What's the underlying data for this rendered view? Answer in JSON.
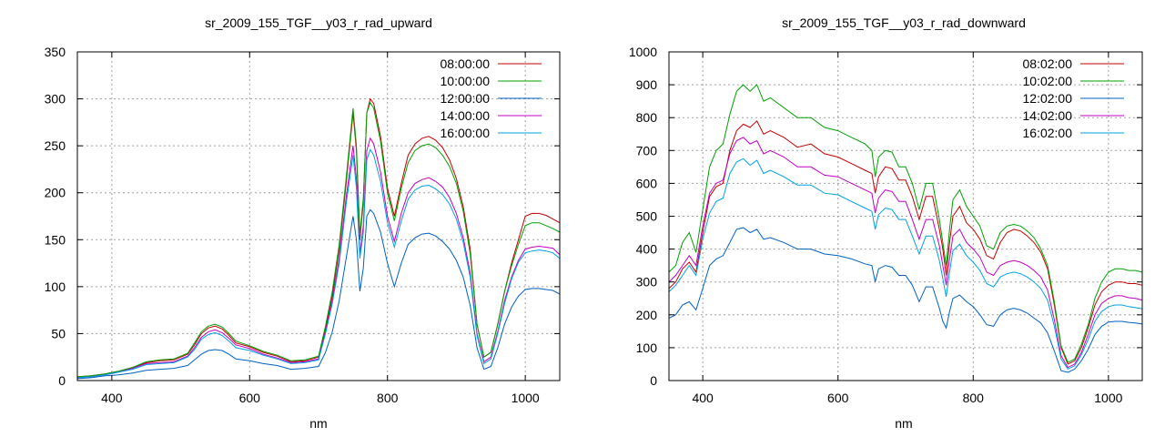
{
  "chart_data": [
    {
      "type": "line",
      "title": "sr_2009_155_TGF__y03_r_rad_upward",
      "xlabel": "nm",
      "ylabel": "",
      "xlim": [
        350,
        1050
      ],
      "ylim": [
        0,
        350
      ],
      "xticks": [
        400,
        600,
        800,
        1000
      ],
      "yticks": [
        0,
        50,
        100,
        150,
        200,
        250,
        300,
        350
      ],
      "grid": true,
      "legend_position": "top-right",
      "x": [
        350,
        370,
        390,
        410,
        430,
        450,
        470,
        490,
        510,
        520,
        530,
        540,
        550,
        560,
        570,
        580,
        600,
        620,
        640,
        660,
        680,
        700,
        710,
        720,
        730,
        740,
        750,
        755,
        760,
        765,
        770,
        775,
        780,
        790,
        800,
        810,
        820,
        830,
        840,
        850,
        860,
        870,
        880,
        890,
        900,
        910,
        920,
        930,
        940,
        950,
        960,
        970,
        980,
        990,
        1000,
        1010,
        1020,
        1030,
        1040,
        1050
      ],
      "series": [
        {
          "name": "08:00:00",
          "color": "#c00000",
          "values": [
            4,
            5,
            7,
            10,
            14,
            19,
            21,
            22,
            28,
            38,
            50,
            56,
            58,
            55,
            48,
            40,
            36,
            30,
            26,
            20,
            21,
            25,
            55,
            90,
            140,
            210,
            285,
            245,
            150,
            190,
            285,
            300,
            295,
            260,
            205,
            175,
            210,
            240,
            252,
            258,
            260,
            256,
            248,
            235,
            215,
            185,
            140,
            60,
            25,
            30,
            60,
            95,
            125,
            150,
            175,
            178,
            178,
            176,
            172,
            168
          ]
        },
        {
          "name": "10:00:00",
          "color": "#00a000",
          "values": [
            4,
            5,
            7,
            10,
            14,
            20,
            22,
            23,
            29,
            40,
            52,
            58,
            60,
            57,
            50,
            42,
            37,
            31,
            27,
            21,
            22,
            26,
            58,
            95,
            145,
            215,
            290,
            250,
            155,
            195,
            285,
            296,
            290,
            255,
            200,
            170,
            205,
            232,
            245,
            250,
            252,
            248,
            240,
            228,
            210,
            180,
            135,
            60,
            25,
            30,
            60,
            95,
            122,
            145,
            165,
            168,
            168,
            165,
            162,
            158
          ]
        },
        {
          "name": "12:00:00",
          "color": "#0060c0",
          "values": [
            2,
            3,
            5,
            6,
            8,
            11,
            12,
            13,
            16,
            22,
            28,
            32,
            33,
            32,
            28,
            23,
            21,
            18,
            16,
            12,
            13,
            15,
            30,
            52,
            85,
            130,
            175,
            150,
            95,
            120,
            175,
            182,
            178,
            158,
            125,
            100,
            125,
            145,
            152,
            156,
            157,
            154,
            148,
            140,
            128,
            110,
            80,
            35,
            12,
            15,
            35,
            60,
            78,
            90,
            97,
            98,
            98,
            97,
            96,
            92
          ]
        },
        {
          "name": "14:00:00",
          "color": "#c000c0",
          "values": [
            3,
            4,
            6,
            9,
            13,
            18,
            19,
            20,
            26,
            35,
            46,
            52,
            54,
            51,
            45,
            38,
            34,
            28,
            24,
            19,
            20,
            23,
            52,
            85,
            130,
            195,
            250,
            215,
            135,
            165,
            245,
            258,
            252,
            222,
            175,
            148,
            178,
            200,
            210,
            214,
            216,
            212,
            206,
            195,
            178,
            152,
            115,
            50,
            20,
            25,
            52,
            85,
            110,
            128,
            140,
            142,
            143,
            142,
            141,
            134
          ]
        },
        {
          "name": "16:00:00",
          "color": "#00a0e0",
          "values": [
            3,
            4,
            6,
            9,
            12,
            17,
            18,
            19,
            25,
            33,
            44,
            49,
            51,
            48,
            42,
            35,
            32,
            27,
            23,
            18,
            19,
            22,
            50,
            82,
            125,
            188,
            240,
            205,
            130,
            158,
            235,
            246,
            240,
            212,
            168,
            142,
            170,
            193,
            203,
            207,
            208,
            204,
            198,
            188,
            172,
            147,
            110,
            48,
            18,
            23,
            50,
            82,
            108,
            126,
            136,
            138,
            139,
            138,
            136,
            130
          ]
        }
      ]
    },
    {
      "type": "line",
      "title": "sr_2009_155_TGF__y03_r_rad_downward",
      "xlabel": "nm",
      "ylabel": "",
      "xlim": [
        350,
        1050
      ],
      "ylim": [
        0,
        1000
      ],
      "xticks": [
        400,
        600,
        800,
        1000
      ],
      "yticks": [
        0,
        100,
        200,
        300,
        400,
        500,
        600,
        700,
        800,
        900,
        1000
      ],
      "grid": true,
      "legend_position": "top-right",
      "x": [
        350,
        360,
        370,
        380,
        390,
        400,
        410,
        420,
        430,
        440,
        450,
        460,
        470,
        480,
        490,
        500,
        520,
        540,
        560,
        580,
        600,
        620,
        640,
        650,
        655,
        660,
        670,
        680,
        690,
        700,
        710,
        720,
        730,
        740,
        750,
        755,
        760,
        765,
        770,
        780,
        790,
        800,
        810,
        820,
        830,
        840,
        850,
        860,
        870,
        880,
        890,
        900,
        910,
        920,
        930,
        940,
        950,
        960,
        970,
        980,
        990,
        1000,
        1010,
        1020,
        1030,
        1040,
        1050
      ],
      "series": [
        {
          "name": "08:02:00",
          "color": "#c00000",
          "values": [
            280,
            300,
            340,
            360,
            330,
            450,
            560,
            590,
            600,
            700,
            760,
            780,
            770,
            790,
            750,
            760,
            740,
            710,
            720,
            690,
            680,
            660,
            640,
            630,
            570,
            620,
            650,
            645,
            610,
            610,
            560,
            490,
            560,
            560,
            460,
            400,
            320,
            420,
            500,
            530,
            480,
            460,
            430,
            380,
            370,
            420,
            450,
            460,
            455,
            440,
            420,
            390,
            340,
            230,
            100,
            50,
            60,
            100,
            160,
            230,
            270,
            290,
            300,
            300,
            295,
            295,
            290
          ]
        },
        {
          "name": "10:02:00",
          "color": "#00a000",
          "values": [
            330,
            350,
            420,
            450,
            390,
            520,
            650,
            700,
            720,
            810,
            880,
            900,
            880,
            900,
            850,
            860,
            830,
            800,
            800,
            770,
            760,
            740,
            720,
            700,
            620,
            680,
            700,
            695,
            650,
            650,
            600,
            520,
            600,
            600,
            490,
            420,
            350,
            460,
            550,
            580,
            530,
            500,
            470,
            410,
            400,
            450,
            470,
            475,
            470,
            455,
            435,
            400,
            350,
            240,
            105,
            55,
            65,
            110,
            170,
            250,
            300,
            330,
            340,
            340,
            335,
            335,
            330
          ]
        },
        {
          "name": "12:02:00",
          "color": "#0060c0",
          "values": [
            190,
            200,
            230,
            240,
            215,
            280,
            350,
            370,
            380,
            420,
            460,
            465,
            450,
            460,
            430,
            435,
            420,
            400,
            400,
            385,
            380,
            370,
            355,
            350,
            300,
            340,
            350,
            345,
            320,
            320,
            290,
            240,
            285,
            285,
            220,
            180,
            160,
            210,
            250,
            260,
            240,
            225,
            200,
            170,
            165,
            200,
            215,
            220,
            215,
            205,
            190,
            175,
            145,
            90,
            30,
            25,
            35,
            60,
            95,
            140,
            165,
            178,
            180,
            180,
            177,
            175,
            172
          ]
        },
        {
          "name": "14:02:00",
          "color": "#c000c0",
          "values": [
            300,
            320,
            350,
            380,
            350,
            470,
            570,
            600,
            610,
            690,
            730,
            740,
            720,
            730,
            690,
            700,
            680,
            650,
            650,
            625,
            620,
            600,
            580,
            570,
            510,
            555,
            580,
            575,
            545,
            545,
            490,
            430,
            490,
            490,
            410,
            350,
            290,
            370,
            440,
            460,
            420,
            400,
            375,
            330,
            320,
            350,
            360,
            365,
            360,
            350,
            335,
            315,
            275,
            185,
            75,
            40,
            50,
            85,
            140,
            200,
            235,
            250,
            258,
            258,
            252,
            250,
            245
          ]
        },
        {
          "name": "16:02:00",
          "color": "#00a0e0",
          "values": [
            270,
            290,
            320,
            350,
            320,
            430,
            510,
            545,
            555,
            630,
            665,
            675,
            655,
            670,
            630,
            640,
            620,
            595,
            595,
            570,
            565,
            545,
            525,
            515,
            460,
            505,
            525,
            520,
            490,
            490,
            440,
            385,
            440,
            440,
            365,
            310,
            255,
            330,
            395,
            415,
            380,
            360,
            335,
            295,
            285,
            315,
            325,
            330,
            325,
            315,
            300,
            280,
            245,
            165,
            65,
            35,
            45,
            78,
            125,
            180,
            210,
            225,
            230,
            230,
            225,
            222,
            218
          ]
        }
      ]
    }
  ]
}
